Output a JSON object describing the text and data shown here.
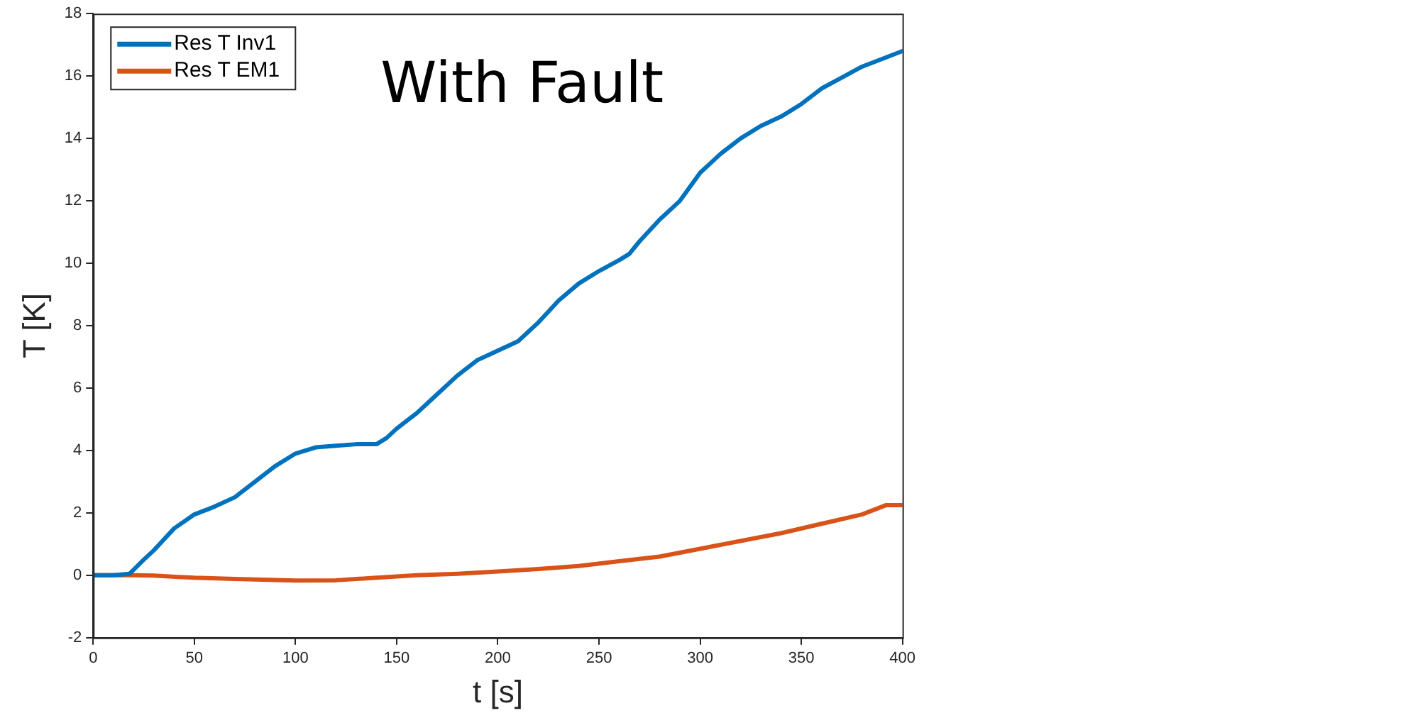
{
  "chart_data": [
    {
      "type": "line",
      "xlabel": "t [s]",
      "ylabel": "T [K]",
      "annotations": [
        "With Fault"
      ],
      "xlim": [
        0,
        400
      ],
      "xticks": [
        0,
        50,
        100,
        150,
        200,
        250,
        300,
        350,
        400
      ],
      "ylim": [
        -2,
        18
      ],
      "yticks": [
        -2,
        0,
        2,
        4,
        6,
        8,
        10,
        12,
        14,
        16,
        18
      ],
      "grid": false,
      "legend": "top left",
      "line_style": "solid",
      "marker": "none",
      "series": [
        {
          "name": "Res T Inv1",
          "color": "#0072bd",
          "x": [
            0,
            10,
            18,
            25,
            30,
            40,
            50,
            60,
            70,
            80,
            90,
            100,
            110,
            120,
            130,
            140,
            145,
            150,
            160,
            170,
            180,
            190,
            200,
            210,
            220,
            230,
            240,
            250,
            260,
            265,
            270,
            280,
            290,
            300,
            310,
            320,
            330,
            340,
            350,
            360,
            370,
            380,
            390,
            400
          ],
          "values": [
            0,
            0,
            0.05,
            0.5,
            0.8,
            1.5,
            1.95,
            2.2,
            2.5,
            3.0,
            3.5,
            3.9,
            4.1,
            4.15,
            4.2,
            4.2,
            4.4,
            4.7,
            5.2,
            5.8,
            6.4,
            6.9,
            7.2,
            7.5,
            8.1,
            8.8,
            9.35,
            9.75,
            10.1,
            10.3,
            10.7,
            11.4,
            12.0,
            12.9,
            13.5,
            14.0,
            14.4,
            14.7,
            15.1,
            15.6,
            15.95,
            16.3,
            16.55,
            16.8
          ]
        },
        {
          "name": "Res T EM1",
          "color": "#d95319",
          "x": [
            0,
            20,
            30,
            50,
            70,
            100,
            120,
            140,
            160,
            180,
            200,
            220,
            240,
            260,
            280,
            300,
            320,
            340,
            360,
            380,
            392,
            400
          ],
          "values": [
            0,
            0,
            -0.01,
            -0.08,
            -0.12,
            -0.17,
            -0.16,
            -0.08,
            0,
            0.05,
            0.12,
            0.2,
            0.3,
            0.45,
            0.6,
            0.85,
            1.1,
            1.35,
            1.65,
            1.95,
            2.25,
            2.25
          ]
        }
      ]
    }
  ]
}
